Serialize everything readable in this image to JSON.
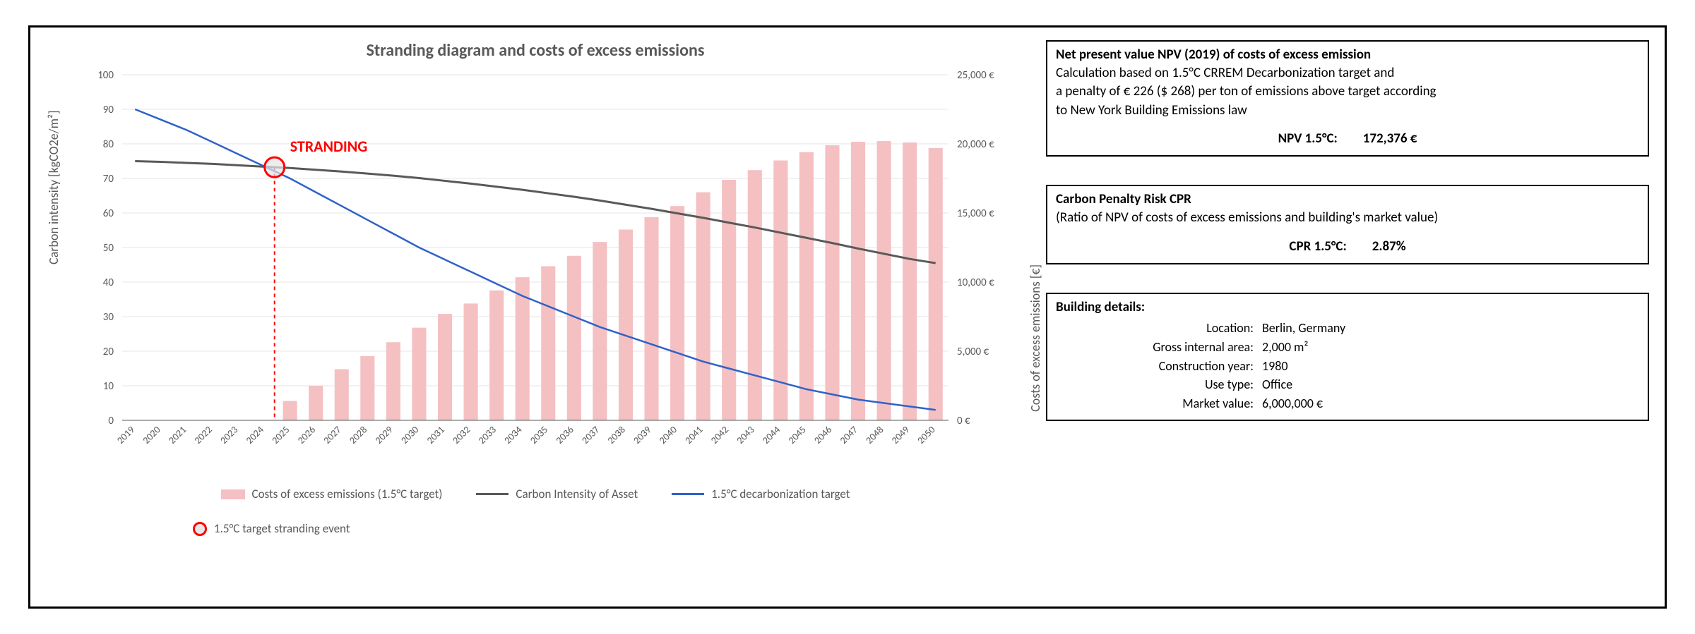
{
  "chart": {
    "title": "Stranding diagram and costs of excess emissions",
    "y_left_label": "Carbon intensity [kgCO2e/m²]",
    "y_right_label": "Costs of excess emissions [€]",
    "years": [
      2019,
      2020,
      2021,
      2022,
      2023,
      2024,
      2025,
      2026,
      2027,
      2028,
      2029,
      2030,
      2031,
      2032,
      2033,
      2034,
      2035,
      2036,
      2037,
      2038,
      2039,
      2040,
      2041,
      2042,
      2043,
      2044,
      2045,
      2046,
      2047,
      2048,
      2049,
      2050
    ],
    "y_left": {
      "min": 0,
      "max": 100,
      "step": 10
    },
    "y_right": {
      "min": 0,
      "max": 25000,
      "step": 5000,
      "suffix": " €",
      "thousand_sep": ","
    },
    "series": {
      "bars": {
        "label": "Costs of excess emissions (1.5°C target)",
        "color": "#f5c0c2",
        "values": [
          0,
          0,
          0,
          0,
          0,
          0,
          1400,
          2500,
          3700,
          4650,
          5650,
          6700,
          7700,
          8450,
          9400,
          10350,
          11150,
          11900,
          12900,
          13800,
          14700,
          15500,
          16500,
          17400,
          18100,
          18800,
          19400,
          19900,
          20150,
          20200,
          20100,
          19700
        ]
      },
      "asset_line": {
        "label": "Carbon Intensity of Asset",
        "color": "#595959",
        "width": 3,
        "values": [
          75,
          74.8,
          74.5,
          74.2,
          73.8,
          73.4,
          73,
          72.5,
          72,
          71.4,
          70.8,
          70.1,
          69.3,
          68.5,
          67.6,
          66.7,
          65.7,
          64.7,
          63.6,
          62.4,
          61.2,
          59.9,
          58.6,
          57.2,
          55.8,
          54.3,
          52.8,
          51.3,
          49.7,
          48.2,
          46.7,
          45.5
        ]
      },
      "target_line": {
        "label": "1.5°C decarbonization target",
        "color": "#2e62c9",
        "width": 2.5,
        "values": [
          90,
          87,
          84,
          80.5,
          77,
          73.5,
          70,
          66,
          62,
          58,
          54,
          50,
          46.5,
          43,
          39.5,
          36,
          33,
          30,
          27,
          24.5,
          22,
          19.5,
          17,
          15,
          13,
          11,
          9,
          7.5,
          6,
          5,
          4,
          3
        ]
      }
    },
    "stranding": {
      "year": 2024,
      "label": "STRANDING",
      "circle_color": "#ff0000",
      "circle_fill": "#e6e6e6",
      "dash_color": "#ff0000"
    },
    "legend_extra": {
      "stranding_event": "1.5°C target stranding event"
    },
    "plot_bg": "#ffffff",
    "grid_color": "#e6e6e6",
    "axis_text_color": "#595959",
    "x_tick_fontsize": 14,
    "y_tick_fontsize": 15
  },
  "npv_box": {
    "headline": "Net present value NPV (2019) of costs of excess emission",
    "line1": "Calculation based on 1.5°C CRREM Decarbonization target and",
    "line2": "a penalty of € 226 ($ 268) per ton of emissions above target according",
    "line3": "to New York Building Emissions law",
    "metric_label": "NPV 1.5°C:",
    "metric_value": "172,376 €"
  },
  "cpr_box": {
    "headline": "Carbon Penalty Risk CPR",
    "sub": "(Ratio of NPV of costs of excess emissions and building's market value)",
    "metric_label": "CPR 1.5°C:",
    "metric_value": "2.87%"
  },
  "details_box": {
    "headline": "Building details:",
    "rows": [
      [
        "Location:",
        "Berlin, Germany"
      ],
      [
        "Gross internal area:",
        "2,000 m²"
      ],
      [
        "Construction year:",
        "1980"
      ],
      [
        "Use type:",
        "Office"
      ],
      [
        "Market value:",
        "6,000,000 €"
      ]
    ]
  }
}
